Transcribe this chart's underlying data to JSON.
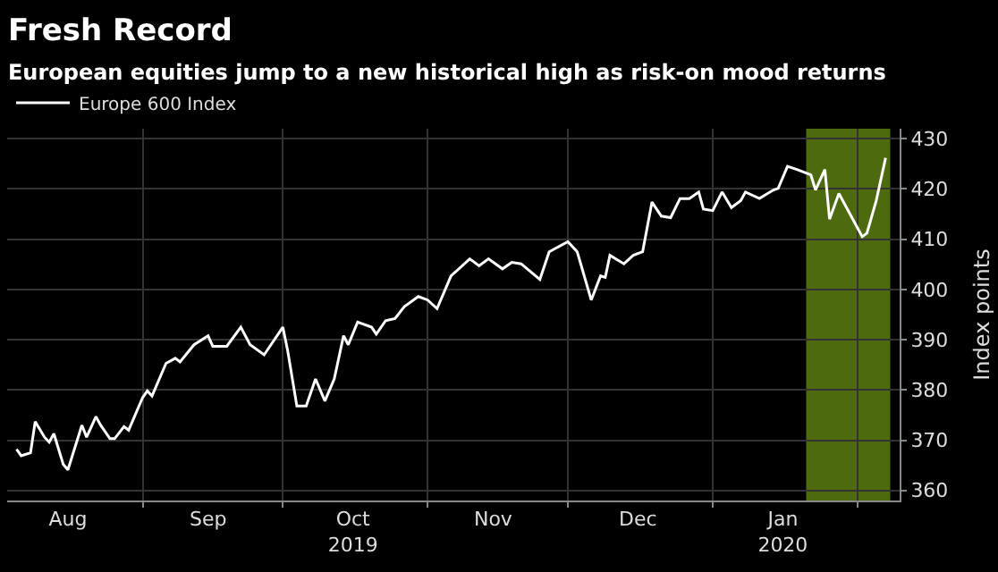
{
  "chart_data": {
    "type": "line",
    "title": "Fresh Record",
    "subtitle": "European equities jump to a new historical high as risk-on mood returns",
    "ylabel": "Index points",
    "x": [
      "2019-08-05",
      "2019-08-06",
      "2019-08-08",
      "2019-08-09",
      "2019-08-11",
      "2019-08-12",
      "2019-08-13",
      "2019-08-15",
      "2019-08-16",
      "2019-08-19",
      "2019-08-20",
      "2019-08-22",
      "2019-08-23",
      "2019-08-25",
      "2019-08-26",
      "2019-08-28",
      "2019-08-29",
      "2019-09-01",
      "2019-09-02",
      "2019-09-03",
      "2019-09-06",
      "2019-09-08",
      "2019-09-09",
      "2019-09-12",
      "2019-09-15",
      "2019-09-16",
      "2019-09-19",
      "2019-09-22",
      "2019-09-24",
      "2019-09-27",
      "2019-10-01",
      "2019-10-02",
      "2019-10-04",
      "2019-10-06",
      "2019-10-08",
      "2019-10-10",
      "2019-10-12",
      "2019-10-14",
      "2019-10-15",
      "2019-10-17",
      "2019-10-20",
      "2019-10-21",
      "2019-10-23",
      "2019-10-25",
      "2019-10-27",
      "2019-10-30",
      "2019-11-01",
      "2019-11-03",
      "2019-11-06",
      "2019-11-10",
      "2019-11-12",
      "2019-11-14",
      "2019-11-17",
      "2019-11-19",
      "2019-11-21",
      "2019-11-25",
      "2019-11-27",
      "2019-12-01",
      "2019-12-03",
      "2019-12-06",
      "2019-12-08",
      "2019-12-09",
      "2019-12-10",
      "2019-12-13",
      "2019-12-15",
      "2019-12-17",
      "2019-12-19",
      "2019-12-21",
      "2019-12-23",
      "2019-12-25",
      "2019-12-27",
      "2019-12-29",
      "2019-12-30",
      "2020-01-01",
      "2020-01-03",
      "2020-01-05",
      "2020-01-07",
      "2020-01-08",
      "2020-01-11",
      "2020-01-14",
      "2020-01-15",
      "2020-01-17",
      "2020-01-19",
      "2020-01-22",
      "2020-01-23",
      "2020-01-25",
      "2020-01-26",
      "2020-01-28",
      "2020-02-02",
      "2020-02-03",
      "2020-02-05",
      "2020-02-07"
    ],
    "series": [
      {
        "name": "Europe 600 Index",
        "color": "#ffffff",
        "values": [
          368.2,
          366.9,
          367.5,
          373.7,
          370.6,
          369.6,
          371.3,
          365.2,
          364.1,
          373.0,
          370.6,
          374.7,
          373.0,
          370.3,
          370.3,
          372.7,
          372.0,
          378.5,
          379.8,
          378.8,
          385.3,
          386.3,
          385.6,
          389.0,
          390.8,
          388.7,
          388.7,
          392.5,
          389.0,
          387.0,
          392.5,
          388.0,
          376.8,
          376.8,
          382.2,
          377.8,
          382.2,
          390.8,
          389.0,
          393.5,
          392.5,
          391.1,
          393.8,
          394.2,
          396.6,
          398.6,
          397.9,
          396.2,
          402.7,
          406.1,
          404.7,
          406.1,
          404.1,
          405.4,
          405.1,
          402.0,
          407.5,
          409.5,
          407.5,
          397.9,
          402.7,
          402.4,
          406.8,
          405.1,
          406.8,
          407.5,
          417.4,
          414.6,
          414.3,
          418.1,
          418.1,
          419.4,
          416.0,
          415.7,
          419.4,
          416.3,
          417.7,
          419.4,
          418.1,
          419.8,
          420.1,
          424.5,
          423.9,
          422.8,
          419.8,
          423.9,
          414.0,
          419.1,
          410.5,
          411.2,
          417.7,
          426.2
        ]
      }
    ],
    "xlim": [
      "2019-08-03",
      "2020-02-10"
    ],
    "xticks": [
      {
        "value": "2019-08-16",
        "label": "Aug"
      },
      {
        "value": "2019-09-01",
        "label": null
      },
      {
        "value": "2019-09-15",
        "label": "Sep"
      },
      {
        "value": "2019-10-01",
        "label": null
      },
      {
        "value": "2019-10-16",
        "label": "Oct\n2019"
      },
      {
        "value": "2019-11-01",
        "label": null
      },
      {
        "value": "2019-11-15",
        "label": "Nov"
      },
      {
        "value": "2019-12-01",
        "label": null
      },
      {
        "value": "2019-12-16",
        "label": "Dec"
      },
      {
        "value": "2020-01-01",
        "label": null
      },
      {
        "value": "2020-01-16",
        "label": "Jan\n2020"
      },
      {
        "value": "2020-02-01",
        "label": null
      }
    ],
    "ylim": [
      358,
      432
    ],
    "yticks": [
      360,
      370,
      380,
      390,
      400,
      410,
      420,
      430
    ],
    "bands": [
      {
        "axis": "x",
        "from": "2020-01-21",
        "to": "2020-02-08",
        "color": "#5c7d12"
      }
    ],
    "grid": true,
    "legend": "top left",
    "marker": "none",
    "line_style": "solid"
  }
}
